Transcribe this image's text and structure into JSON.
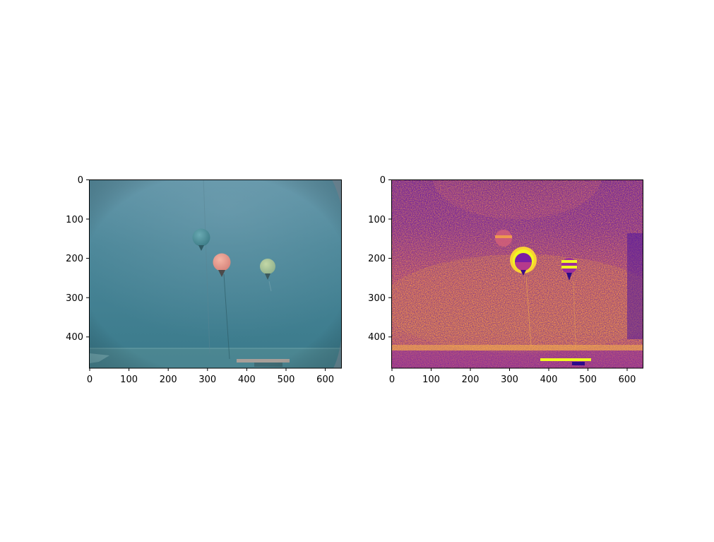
{
  "figure": {
    "panels": [
      {
        "name": "underwater-photo",
        "x_ticks": [
          "0",
          "100",
          "200",
          "300",
          "400",
          "500",
          "600"
        ],
        "y_ticks": [
          "0",
          "100",
          "200",
          "300",
          "400"
        ],
        "x_range": [
          0,
          640
        ],
        "y_range": [
          0,
          480
        ],
        "colors": {
          "water": "#3f7f92",
          "water_top": "#5a8fa3",
          "floor": "#5a8d97"
        },
        "objects": [
          {
            "name": "teal-buoy",
            "cx": 284,
            "cy": 148,
            "r": 23,
            "color": "#4a8e9a"
          },
          {
            "name": "pink-buoy",
            "cx": 336,
            "cy": 210,
            "r": 23,
            "color": "#e59b8e"
          },
          {
            "name": "yellow-buoy",
            "cx": 455,
            "cy": 222,
            "r": 20,
            "color": "#a8c39a"
          }
        ]
      },
      {
        "name": "processed-map",
        "x_ticks": [
          "0",
          "100",
          "200",
          "300",
          "400",
          "500",
          "600"
        ],
        "y_ticks": [
          "0",
          "100",
          "200",
          "300",
          "400"
        ],
        "x_range": [
          0,
          640
        ],
        "y_range": [
          0,
          480
        ],
        "colormap": "plasma",
        "colors": {
          "dark": "#3b0f9e",
          "mid": "#c43e8a",
          "bright": "#f99b3e",
          "peak": "#f0f921"
        }
      }
    ]
  }
}
